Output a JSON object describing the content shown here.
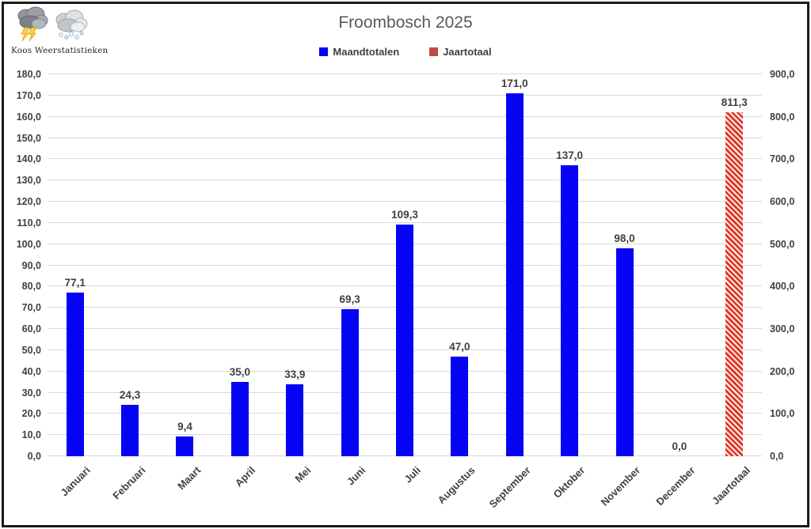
{
  "header": {
    "logo_caption": "Koos Weerstatistieken"
  },
  "chart_data": {
    "type": "bar",
    "title": "Froombosch 2025",
    "categories": [
      "Januari",
      "Februari",
      "Maart",
      "April",
      "Mei",
      "Juni",
      "Juli",
      "Augustus",
      "September",
      "Oktober",
      "November",
      "December",
      "Jaartotaal"
    ],
    "series": [
      {
        "name": "Maandtotalen",
        "axis": "left",
        "color": "#0502F5",
        "fill": "solid",
        "values": [
          77.1,
          24.3,
          9.4,
          35.0,
          33.9,
          69.3,
          109.3,
          47.0,
          171.0,
          137.0,
          98.0,
          0.0,
          null
        ]
      },
      {
        "name": "Jaartotaal",
        "axis": "right",
        "color": "#E13B2C",
        "fill": "diagonal-hatch",
        "values": [
          null,
          null,
          null,
          null,
          null,
          null,
          null,
          null,
          null,
          null,
          null,
          null,
          811.3
        ]
      }
    ],
    "data_labels": [
      "77,1",
      "24,3",
      "9,4",
      "35,0",
      "33,9",
      "69,3",
      "109,3",
      "47,0",
      "171,0",
      "137,0",
      "98,0",
      "0,0",
      "811,3"
    ],
    "left_axis": {
      "min": 0,
      "max": 180,
      "step": 10
    },
    "right_axis": {
      "min": 0,
      "max": 900,
      "step": 100
    },
    "grid": true,
    "legend_position": "top-center",
    "decimal_separator": ","
  },
  "colors": {
    "bar_blue": "#0502F5",
    "bar_red": "#E13B2C",
    "legend_red_swatch": "#BE4B48",
    "gridline": "#D9D9D9",
    "axis_text": "#404040",
    "title_text": "#595959",
    "frame_border": "#1A1A1A"
  }
}
